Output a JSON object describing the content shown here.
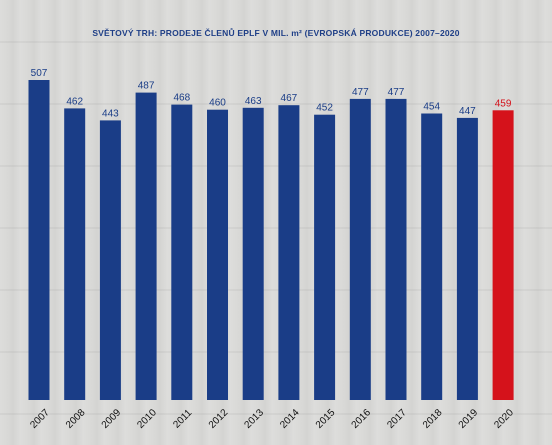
{
  "chart_data": {
    "type": "bar",
    "title": "SVĚTOVÝ TRH: PRODEJE ČLENŮ EPLF V MIL. m² (EVROPSKÁ PRODUKCE) 2007–2020",
    "categories": [
      "2007",
      "2008",
      "2009",
      "2010",
      "2011",
      "2012",
      "2013",
      "2014",
      "2015",
      "2016",
      "2017",
      "2018",
      "2019",
      "2020"
    ],
    "values": [
      507,
      462,
      443,
      487,
      468,
      460,
      463,
      467,
      452,
      477,
      477,
      454,
      447,
      459
    ],
    "value_labels": [
      "507",
      "462",
      "443",
      "487",
      "468",
      "460",
      "463",
      "467",
      "452",
      "477",
      "477",
      "454",
      "447",
      "459"
    ],
    "highlight_category": "2020",
    "xlabel": "",
    "ylabel": "",
    "grid": false,
    "colors": {
      "bar": "#1a3d87",
      "highlight": "#d5121b",
      "label": "#1a3d87",
      "highlight_label": "#d5121b"
    }
  }
}
